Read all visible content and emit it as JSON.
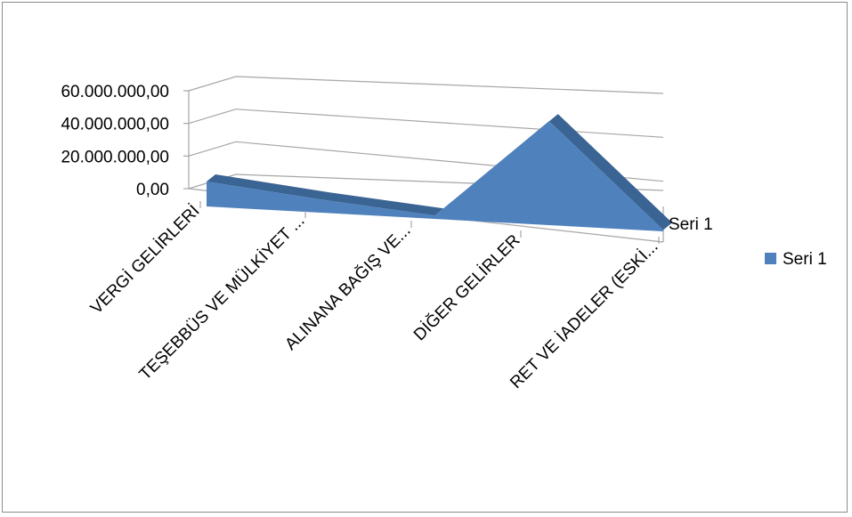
{
  "chart_data": {
    "type": "area",
    "view": "3d",
    "categories": [
      "VERGİ GELİRLERİ",
      "TEŞEBBÜS VE MÜLKİYET ...",
      "ALINANA BAĞIŞ VE...",
      "DİĞER GELİRLER",
      "RET VE İADELER (ESKİ..."
    ],
    "series": [
      {
        "name": "Seri 1",
        "values": [
          10000000,
          4000000,
          -1000000,
          42000000,
          -2000000
        ]
      }
    ],
    "y_ticks": [
      "0,00",
      "20.000.000,00",
      "40.000.000,00",
      "60.000.000,00"
    ],
    "ylim": [
      0,
      60000000
    ],
    "depth_label": "Seri 1",
    "legend": {
      "position": "right",
      "label": "Seri 1"
    },
    "colors": {
      "series": "#4f81bd",
      "series_dark": "#3a6493",
      "grid": "#a6a6a6",
      "border": "#8c8c8c"
    }
  }
}
